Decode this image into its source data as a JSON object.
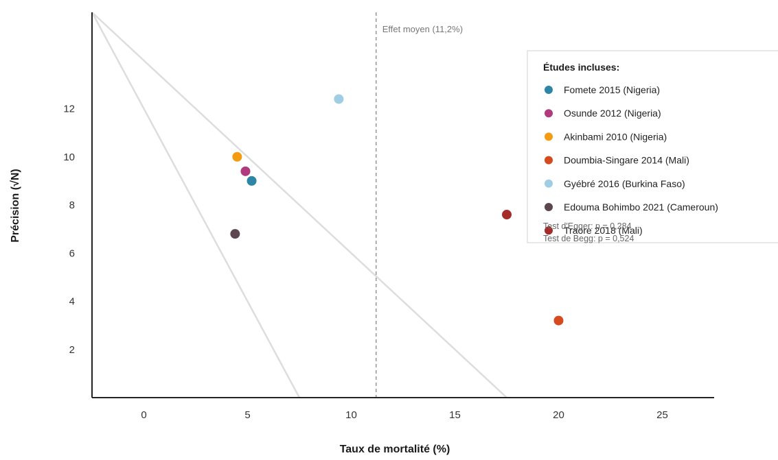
{
  "chart_data": {
    "type": "scatter",
    "xlabel": "Taux de mortalité (%)",
    "ylabel": "Précision (√N)",
    "xlim": [
      -2.5,
      27.5
    ],
    "ylim": [
      0,
      16
    ],
    "xticks": [
      0,
      5,
      10,
      15,
      20,
      25
    ],
    "yticks": [
      2,
      4,
      6,
      8,
      10,
      12
    ],
    "grid": false,
    "legend_placement": "top-right",
    "reference_line": {
      "x": 11.2,
      "label": "Effet moyen (11,2%)"
    },
    "funnel_lines": [
      {
        "points": [
          [
            -2.5,
            16
          ],
          [
            7.5,
            0
          ]
        ]
      },
      {
        "points": [
          [
            -2.5,
            16
          ],
          [
            17.5,
            0
          ]
        ]
      }
    ],
    "legend_title": "Études incluses:",
    "series": [
      {
        "name": "Fomete 2015 (Nigeria)",
        "color": "#2e86a6",
        "x": 5.2,
        "y": 9.0
      },
      {
        "name": "Osunde 2012 (Nigeria)",
        "color": "#b03a7e",
        "x": 4.9,
        "y": 9.4
      },
      {
        "name": "Akinbami 2010 (Nigeria)",
        "color": "#f39c12",
        "x": 4.5,
        "y": 10.0
      },
      {
        "name": "Doumbia-Singare 2014 (Mali)",
        "color": "#d64a1f",
        "x": 20.0,
        "y": 3.2
      },
      {
        "name": "Gyébré 2016 (Burkina Faso)",
        "color": "#9fcde3",
        "x": 9.4,
        "y": 12.4
      },
      {
        "name": "Edouma Bohimbo 2021 (Cameroun)",
        "color": "#5c4750",
        "x": 4.4,
        "y": 6.8
      },
      {
        "name": "Traore 2018 (Mali)",
        "color": "#a52a2a",
        "x": 17.5,
        "y": 7.6
      }
    ],
    "annotations": {
      "egger": "Test d'Egger: p = 0,284",
      "begg": "Test de Begg: p = 0,524"
    }
  }
}
